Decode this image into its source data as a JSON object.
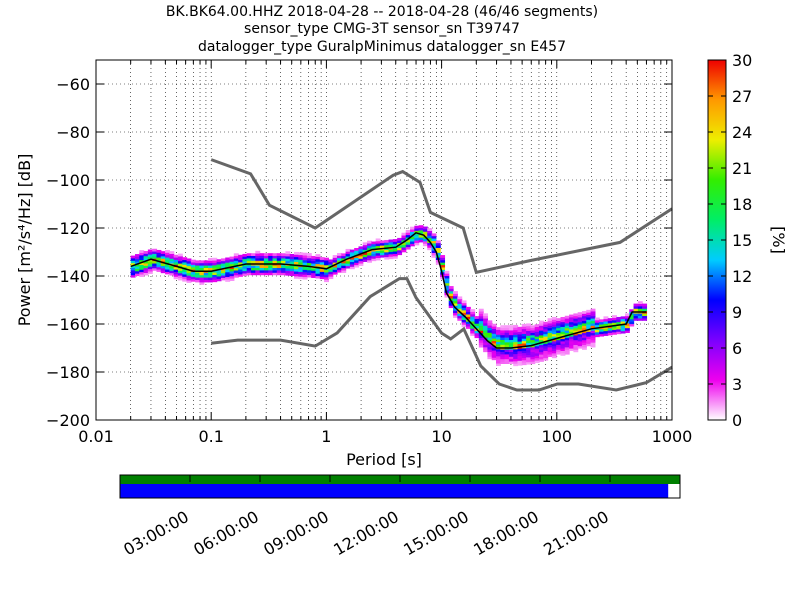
{
  "chart_data": [
    {
      "type": "heatmap",
      "title_lines": [
        "BK.BK64.00.HHZ   2018-04-28 -- 2018-04-28  (46/46 segments)",
        "sensor_type CMG-3T sensor_sn T39747",
        "datalogger_type GuralpMinimus datalogger_sn E457"
      ],
      "xlabel": "Period [s]",
      "ylabel": "Power [m²/s⁴/Hz] [dB]",
      "xscale": "log",
      "xlim": [
        0.01,
        1000
      ],
      "ylim": [
        -200,
        -50
      ],
      "xticks": [
        {
          "v": 0.01,
          "label": "0.01"
        },
        {
          "v": 0.1,
          "label": "0.1"
        },
        {
          "v": 1,
          "label": "1"
        },
        {
          "v": 10,
          "label": "10"
        },
        {
          "v": 100,
          "label": "100"
        },
        {
          "v": 1000,
          "label": "1000"
        }
      ],
      "yticks": [
        {
          "v": -60,
          "label": "−60"
        },
        {
          "v": -80,
          "label": "−80"
        },
        {
          "v": -100,
          "label": "−100"
        },
        {
          "v": -120,
          "label": "−120"
        },
        {
          "v": -140,
          "label": "−140"
        },
        {
          "v": -160,
          "label": "−160"
        },
        {
          "v": -180,
          "label": "−180"
        },
        {
          "v": -200,
          "label": "−200"
        }
      ],
      "grid": true,
      "noise_models": [
        {
          "x": [
            0.1,
            0.22,
            0.32,
            0.8,
            3.8,
            4.6,
            6.5,
            8.0,
            15.4,
            20,
            60,
            354,
            1000
          ],
          "y": [
            -91.5,
            -97.4,
            -110.5,
            -120,
            -98,
            -96.5,
            -101,
            -113.5,
            -120,
            -138.5,
            -133.5,
            -126,
            -112
          ]
        },
        {
          "x": [
            0.1,
            0.17,
            0.4,
            0.8,
            1.24,
            2.4,
            4.3,
            5.0,
            6.0,
            10,
            12,
            15.6,
            21.9,
            31.6,
            45,
            70,
            101,
            154,
            328,
            600,
            1000
          ],
          "y": [
            -168,
            -166.7,
            -166.7,
            -169.2,
            -163.7,
            -148.6,
            -141.1,
            -141.1,
            -149,
            -163.8,
            -166.2,
            -162.1,
            -177.5,
            -185,
            -187.5,
            -187.5,
            -185,
            -185,
            -187.5,
            -184.4,
            -178
          ]
        }
      ],
      "median": {
        "x": [
          0.02,
          0.03,
          0.05,
          0.07,
          0.1,
          0.2,
          0.4,
          0.7,
          1.0,
          1.5,
          2.5,
          4.0,
          5.0,
          6.0,
          7.0,
          8.0,
          9.0,
          10,
          11,
          13,
          16,
          20,
          25,
          30,
          40,
          60,
          100,
          200,
          400,
          450,
          600
        ],
        "y": [
          -136,
          -133,
          -136,
          -138,
          -138,
          -135,
          -135,
          -136,
          -137,
          -133,
          -129,
          -128,
          -125,
          -122,
          -123,
          -126,
          -130,
          -138,
          -147,
          -153,
          -157,
          -162,
          -167,
          -170,
          -170,
          -169,
          -166,
          -162,
          -160,
          -155,
          -155
        ]
      },
      "colorbar": {
        "label": "[%]",
        "min": 0,
        "max": 30,
        "ticks": [
          0,
          3,
          6,
          9,
          12,
          15,
          18,
          21,
          24,
          27,
          30
        ]
      },
      "colormap_stops": [
        "#ffffff",
        "#ee00ee",
        "#7a00ff",
        "#0000ff",
        "#00ccff",
        "#00ee66",
        "#33ee00",
        "#eeee00",
        "#ff9900",
        "#ee0000"
      ]
    },
    {
      "type": "bar",
      "description_free": true,
      "time_ticks": [
        "03:00:00",
        "06:00:00",
        "09:00:00",
        "12:00:00",
        "15:00:00",
        "18:00:00",
        "21:00:00"
      ],
      "data_coverage_fraction": 1.0,
      "used_segments_fraction": 0.979,
      "colors": {
        "data": "#008000",
        "used": "#0000ff"
      }
    }
  ]
}
